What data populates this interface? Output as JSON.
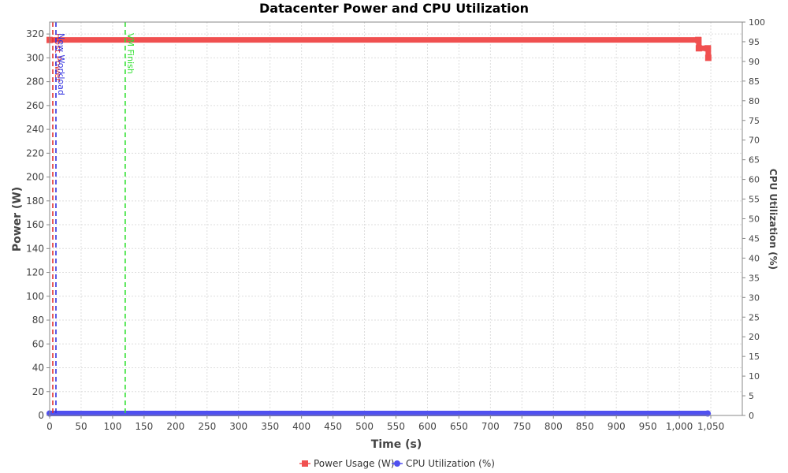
{
  "colors": {
    "power": "#f05050",
    "cpu": "#5050f0",
    "marker_red": "#e03030",
    "marker_blue": "#3030e0",
    "marker_green": "#30e030",
    "grid": "#dddddd"
  },
  "chart_data": {
    "type": "line",
    "title": "Datacenter Power and CPU Utilization",
    "xlabel": "Time (s)",
    "ylabel": "Power (W)",
    "y2label": "CPU Utilization (%)",
    "xlim": [
      0,
      1100
    ],
    "ylim": [
      0,
      330
    ],
    "y2lim": [
      0,
      100
    ],
    "grid": true,
    "legend_position": "bottom-center",
    "x_ticks": [
      0,
      50,
      100,
      150,
      200,
      250,
      300,
      350,
      400,
      450,
      500,
      550,
      600,
      650,
      700,
      750,
      800,
      850,
      900,
      950,
      1000,
      1050
    ],
    "x_tick_labels": [
      "0",
      "50",
      "100",
      "150",
      "200",
      "250",
      "300",
      "350",
      "400",
      "450",
      "500",
      "550",
      "600",
      "650",
      "700",
      "750",
      "800",
      "850",
      "900",
      "950",
      "1,000",
      "1,050"
    ],
    "y_ticks": [
      0,
      20,
      40,
      60,
      80,
      100,
      120,
      140,
      160,
      180,
      200,
      220,
      240,
      260,
      280,
      300,
      320
    ],
    "y2_ticks": [
      0,
      5,
      10,
      15,
      20,
      25,
      30,
      35,
      40,
      45,
      50,
      55,
      60,
      65,
      70,
      75,
      80,
      85,
      90,
      95,
      100
    ],
    "series": [
      {
        "name": "Power Usage (W)",
        "axis": "left",
        "marker": "square",
        "x": [
          0,
          1030,
          1031,
          1045,
          1046
        ],
        "y": [
          315,
          315,
          308,
          308,
          300
        ]
      },
      {
        "name": "CPU Utilization (%)",
        "axis": "right",
        "marker": "circle",
        "x": [
          0,
          1045
        ],
        "y": [
          0.5,
          0.5
        ]
      }
    ],
    "markers": [
      {
        "x": 5,
        "label": "Host Power",
        "color_key": "marker_red"
      },
      {
        "x": 10,
        "label": "New Workload",
        "color_key": "marker_blue"
      },
      {
        "x": 120,
        "label": "VM Finish",
        "color_key": "marker_green"
      }
    ]
  }
}
